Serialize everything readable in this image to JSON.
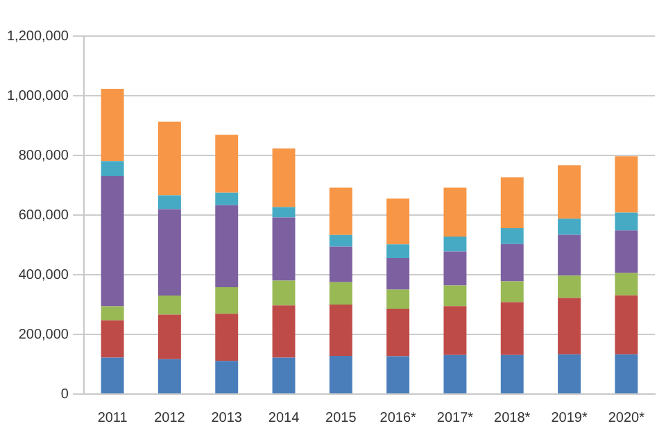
{
  "chart_data": {
    "type": "bar",
    "stacked": true,
    "categories": [
      "2011",
      "2012",
      "2013",
      "2014",
      "2015",
      "2016*",
      "2017*",
      "2018*",
      "2019*",
      "2020*"
    ],
    "series": [
      {
        "color": "#4a7ebb",
        "values": [
          122000,
          117000,
          111000,
          122000,
          128000,
          127000,
          131000,
          131000,
          133000,
          133000
        ]
      },
      {
        "color": "#be4b48",
        "values": [
          125000,
          149000,
          158000,
          175000,
          172000,
          159000,
          164000,
          177000,
          189000,
          198000
        ]
      },
      {
        "color": "#98b954",
        "values": [
          47000,
          64000,
          89000,
          83000,
          75000,
          64000,
          69000,
          70000,
          75000,
          75000
        ]
      },
      {
        "color": "#7d60a0",
        "values": [
          436000,
          290000,
          275000,
          212000,
          119000,
          106000,
          114000,
          125000,
          137000,
          142000
        ]
      },
      {
        "color": "#46aac5",
        "values": [
          51000,
          46000,
          42000,
          35000,
          39000,
          46000,
          50000,
          53000,
          54000,
          60000
        ]
      },
      {
        "color": "#f79646",
        "values": [
          242000,
          247000,
          194000,
          196000,
          159000,
          153000,
          164000,
          171000,
          179000,
          189000
        ]
      }
    ],
    "ylim": [
      0,
      1200000
    ],
    "yticks": [
      0,
      {
        "value": 200000,
        "label": "200,000"
      },
      {
        "value": 400000,
        "label": "400,000"
      },
      {
        "value": 600000,
        "label": "600,000"
      },
      {
        "value": 800000,
        "label": "800,000"
      },
      {
        "value": 1000000,
        "label": "1,000,000"
      },
      {
        "value": 1200000,
        "label": "1,200,000"
      }
    ],
    "grid": "y",
    "legend": false
  }
}
